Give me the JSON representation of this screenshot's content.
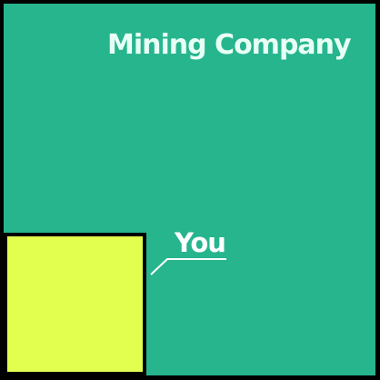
{
  "diagram": {
    "outer": {
      "label": "Mining Company",
      "fill_color": "#27b58e",
      "text_color": "#e8fff5"
    },
    "inner": {
      "label": "You",
      "fill_color": "#e2ff4f",
      "border_color": "#000000",
      "text_color": "#ffffff"
    },
    "leader_color": "#ffffff"
  }
}
